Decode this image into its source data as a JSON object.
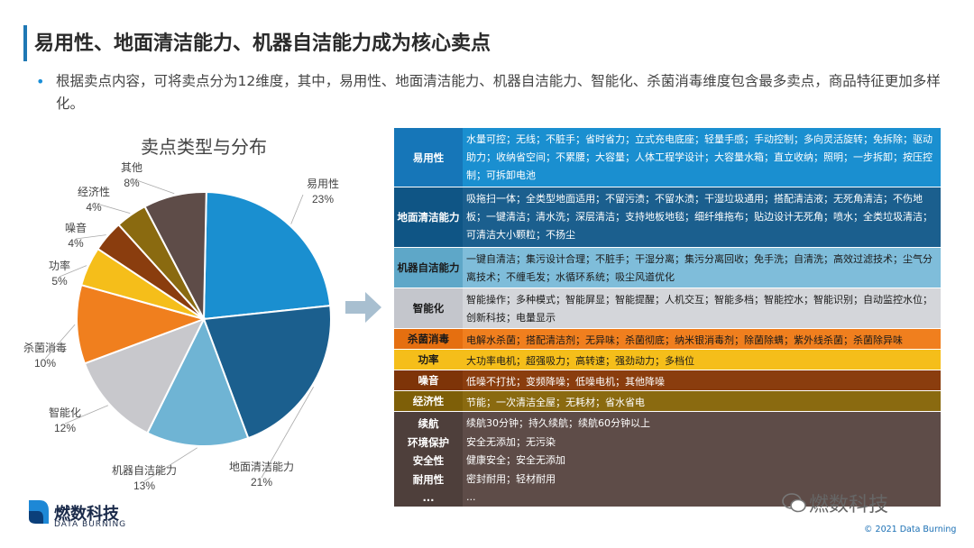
{
  "header": {
    "title": "易用性、地面清洁能力、机器自洁能力成为核心卖点",
    "bullet": "根据卖点内容，可将卖点分为12维度，其中，易用性、地面清洁能力、机器自洁能力、智能化、杀菌消毒维度包含最多卖点，商品特征更加多样化。"
  },
  "chart_data": {
    "type": "pie",
    "title": "卖点类型与分布",
    "categories": [
      "易用性",
      "地面清洁能力",
      "机器自洁能力",
      "智能化",
      "杀菌消毒",
      "功率",
      "噪音",
      "经济性",
      "其他"
    ],
    "values": [
      23,
      21,
      13,
      12,
      10,
      5,
      4,
      4,
      8
    ],
    "value_labels": [
      "23%",
      "21%",
      "13%",
      "12%",
      "10%",
      "5%",
      "4%",
      "4%",
      "8%"
    ],
    "colors": [
      "#1a8fd0",
      "#1b5f8e",
      "#6fb4d4",
      "#c8c8cc",
      "#f07f1e",
      "#f5be1a",
      "#8a3d0e",
      "#8a6a10",
      "#5e4c48"
    ]
  },
  "table": {
    "rows": [
      {
        "label": "易用性",
        "text": "水量可控；无线；不脏手；省时省力；立式充电底座；轻量手感；手动控制；多向灵活旋转；免拆除；驱动助力；收纳省空间；不累腰；大容量；人体工程学设计；大容量水箱；直立收纳；照明；一步拆卸；按压控制；可拆卸电池"
      },
      {
        "label": "地面清洁能力",
        "text": "吸拖扫一体；全类型地面适用；不留污渍；不留水渍；干湿垃圾通用；搭配清洁液；无死角清洁；不伤地板；一键清洁；清水洗；深层清洁；支持地板地毯；细纤维拖布；贴边设计无死角；喷水；全类垃圾清洁；可清洁大小颗粒；不扬尘"
      },
      {
        "label": "机器自洁能力",
        "text": "一键自清洁；集污设计合理；不脏手；干湿分离；集污分离回收；免手洗；自清洗；高效过滤技术；尘气分离技术；不缠毛发；水循环系统；吸尘风道优化"
      },
      {
        "label": "智能化",
        "text": "智能操作；多种模式；智能屏显；智能提醒；人机交互；智能多档；智能控水；智能识别；自动监控水位；创新科技；电量显示"
      },
      {
        "label": "杀菌消毒",
        "text": "电解水杀菌；搭配清洁剂；无异味；杀菌彻底；纳米银消毒剂；除菌除螨；紫外线杀菌；杀菌除异味"
      },
      {
        "label": "功率",
        "text": "大功率电机；超强吸力；高转速；强劲动力；多档位"
      },
      {
        "label": "噪音",
        "text": "低噪不打扰；变频降噪；低噪电机；其他降噪"
      },
      {
        "label": "经济性",
        "text": "节能；一次清洁全屋；无耗材；省水省电"
      },
      {
        "label": "其他",
        "labels": [
          "续航",
          "环境保护",
          "安全性",
          "耐用性",
          "..."
        ],
        "texts": [
          "续航30分钟；持久续航；续航60分钟以上",
          "安全无添加；无污染",
          "健康安全；安全无添加",
          "密封耐用；轻材耐用",
          "..."
        ]
      }
    ]
  },
  "footer": {
    "brand_cn": "燃数科技",
    "brand_en": "DATA BURNING",
    "watermark": "燃数科技",
    "copyright": "© 2021 Data Burning"
  }
}
